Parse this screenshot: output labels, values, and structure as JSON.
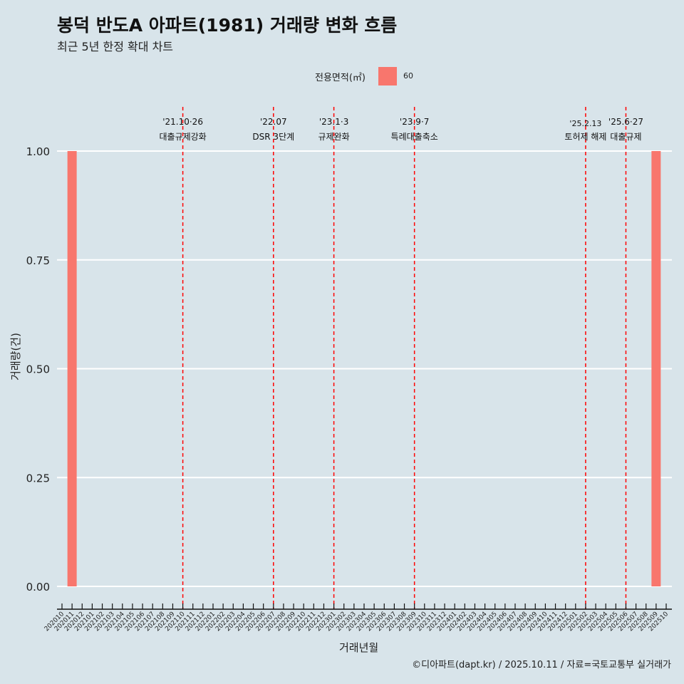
{
  "chart_data": {
    "type": "bar",
    "title": "봉덕 반도A 아파트(1981) 거래량 변화 흐름",
    "subtitle": "최근 5년 한정 확대 차트",
    "xlabel": "거래년월",
    "ylabel": "거래량(건)",
    "legend": {
      "title": "전용면적(㎡)",
      "entries": [
        {
          "label": "60",
          "color": "#f8766d"
        }
      ],
      "placement": "top"
    },
    "ylim": [
      0,
      1
    ],
    "yticks": [
      0,
      0.25,
      0.5,
      0.75,
      1
    ],
    "ytick_labels": [
      "0.00",
      "0.25",
      "0.50",
      "0.75",
      "1.00"
    ],
    "categories": [
      "202010",
      "202011",
      "202012",
      "202101",
      "202102",
      "202103",
      "202104",
      "202105",
      "202106",
      "202107",
      "202108",
      "202109",
      "202110",
      "202111",
      "202112",
      "202201",
      "202202",
      "202203",
      "202204",
      "202205",
      "202206",
      "202207",
      "202208",
      "202209",
      "202210",
      "202211",
      "202212",
      "202301",
      "202302",
      "202303",
      "202304",
      "202305",
      "202306",
      "202307",
      "202308",
      "202309",
      "202310",
      "202311",
      "202312",
      "202401",
      "202402",
      "202403",
      "202404",
      "202405",
      "202406",
      "202407",
      "202408",
      "202409",
      "202410",
      "202411",
      "202412",
      "202501",
      "202502",
      "202503",
      "202504",
      "202505",
      "202506",
      "202507",
      "202508",
      "202509",
      "202510"
    ],
    "series": [
      {
        "name": "60",
        "color": "#f8766d",
        "points": [
          {
            "x": "202011",
            "y": 1
          },
          {
            "x": "202509",
            "y": 1
          }
        ]
      }
    ],
    "annotations": [
      {
        "x": "202110",
        "date": "'21.10·26",
        "label": "대출규제강화"
      },
      {
        "x": "202207",
        "date": "'22.07",
        "label": "DSR 3단계"
      },
      {
        "x": "202301",
        "date": "'23.1·3",
        "label": "규제완화"
      },
      {
        "x": "202309",
        "date": "'23.9·7",
        "label": "특례대출축소"
      },
      {
        "x": "202502",
        "date": "'25.2.13",
        "label": "토허제 해제"
      },
      {
        "x": "202506",
        "date": "'25.6·27",
        "label": "대출규제"
      }
    ],
    "annotation_color": "#ff0000",
    "caption": "©디아파트(dapt.kr) / 2025.10.11 / 자료=국토교통부 실거래가"
  }
}
